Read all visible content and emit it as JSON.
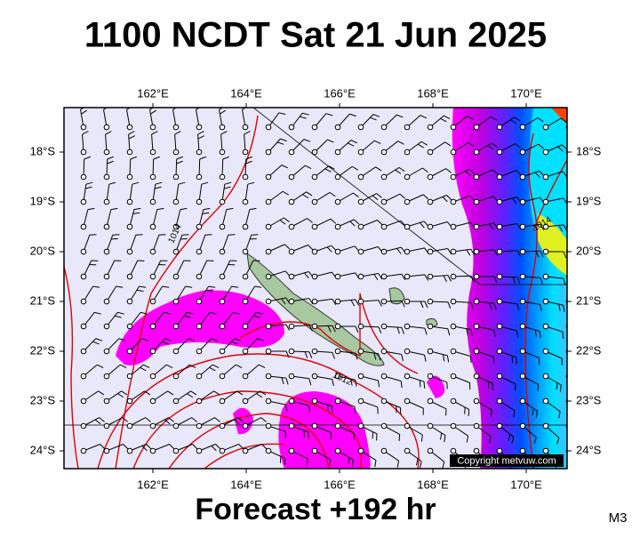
{
  "title": "1100 NCDT Sat 21 Jun 2025",
  "longitude_labels": [
    "162°E",
    "164°E",
    "166°E",
    "168°E",
    "170°E"
  ],
  "latitude_labels": [
    "18°S",
    "19°S",
    "20°S",
    "21°S",
    "22°S",
    "23°S",
    "24°S"
  ],
  "contour_labels": [
    "1014",
    "1014",
    "1012"
  ],
  "copyright": "Copyright metvuw.com",
  "footer": "Forecast +192 hr",
  "model": "M3"
}
